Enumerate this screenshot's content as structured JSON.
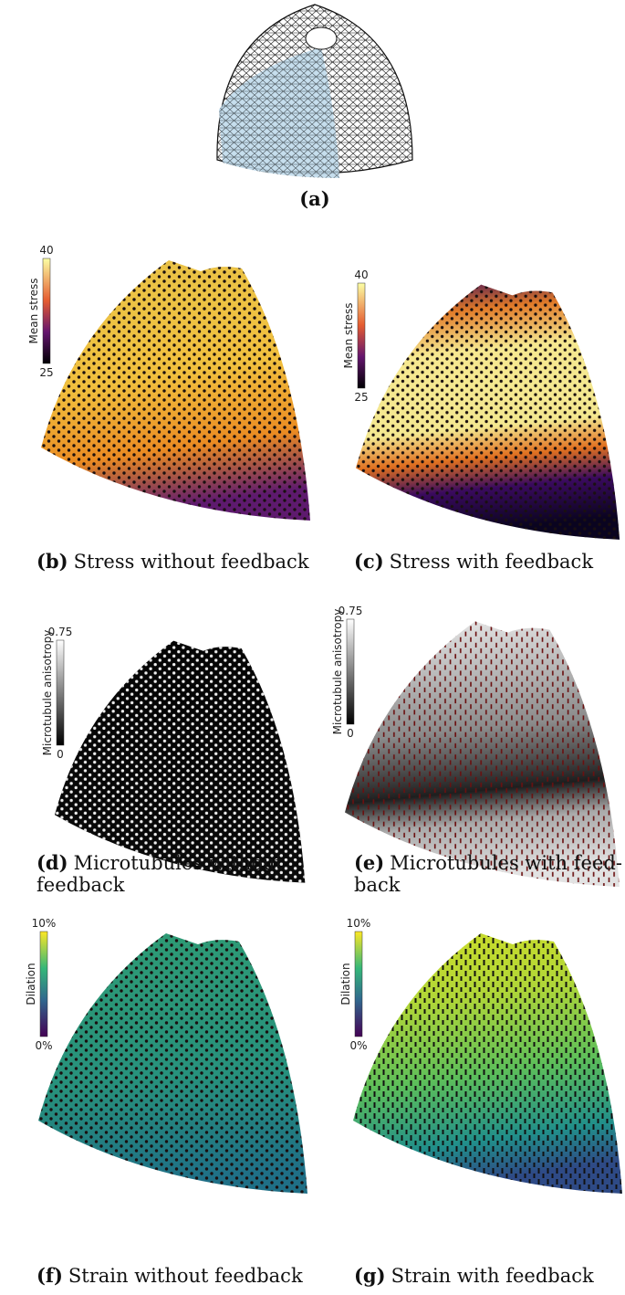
{
  "figure": {
    "panels": [
      {
        "label": "(a)"
      },
      {
        "label": "(b)",
        "caption_lines": [
          "Stress without feedback"
        ],
        "colorbar": {
          "title": "Mean stress",
          "max": "40",
          "min": "25"
        }
      },
      {
        "label": "(c)",
        "caption_lines": [
          "Stress with feedback"
        ],
        "colorbar": {
          "title": "Mean stress",
          "max": "40",
          "min": "25"
        }
      },
      {
        "label": "(d)",
        "caption_lines": [
          "Microtubules without",
          "feedback"
        ],
        "colorbar": {
          "title": "Microtubule anisotropy",
          "max": "0.75",
          "min": "0"
        }
      },
      {
        "label": "(e)",
        "caption_lines": [
          "Microtubules with feed-",
          "back"
        ],
        "colorbar": {
          "title": "Microtubule anisotropy",
          "max": "0.75",
          "min": "0"
        }
      },
      {
        "label": "(f)",
        "caption_lines": [
          "Strain without feedback"
        ],
        "colorbar": {
          "title": "Dilation",
          "max": "10%",
          "min": "0%"
        }
      },
      {
        "label": "(g)",
        "caption_lines": [
          "Strain with feedback"
        ],
        "colorbar": {
          "title": "Dilation",
          "max": "10%",
          "min": "0%"
        }
      }
    ]
  }
}
